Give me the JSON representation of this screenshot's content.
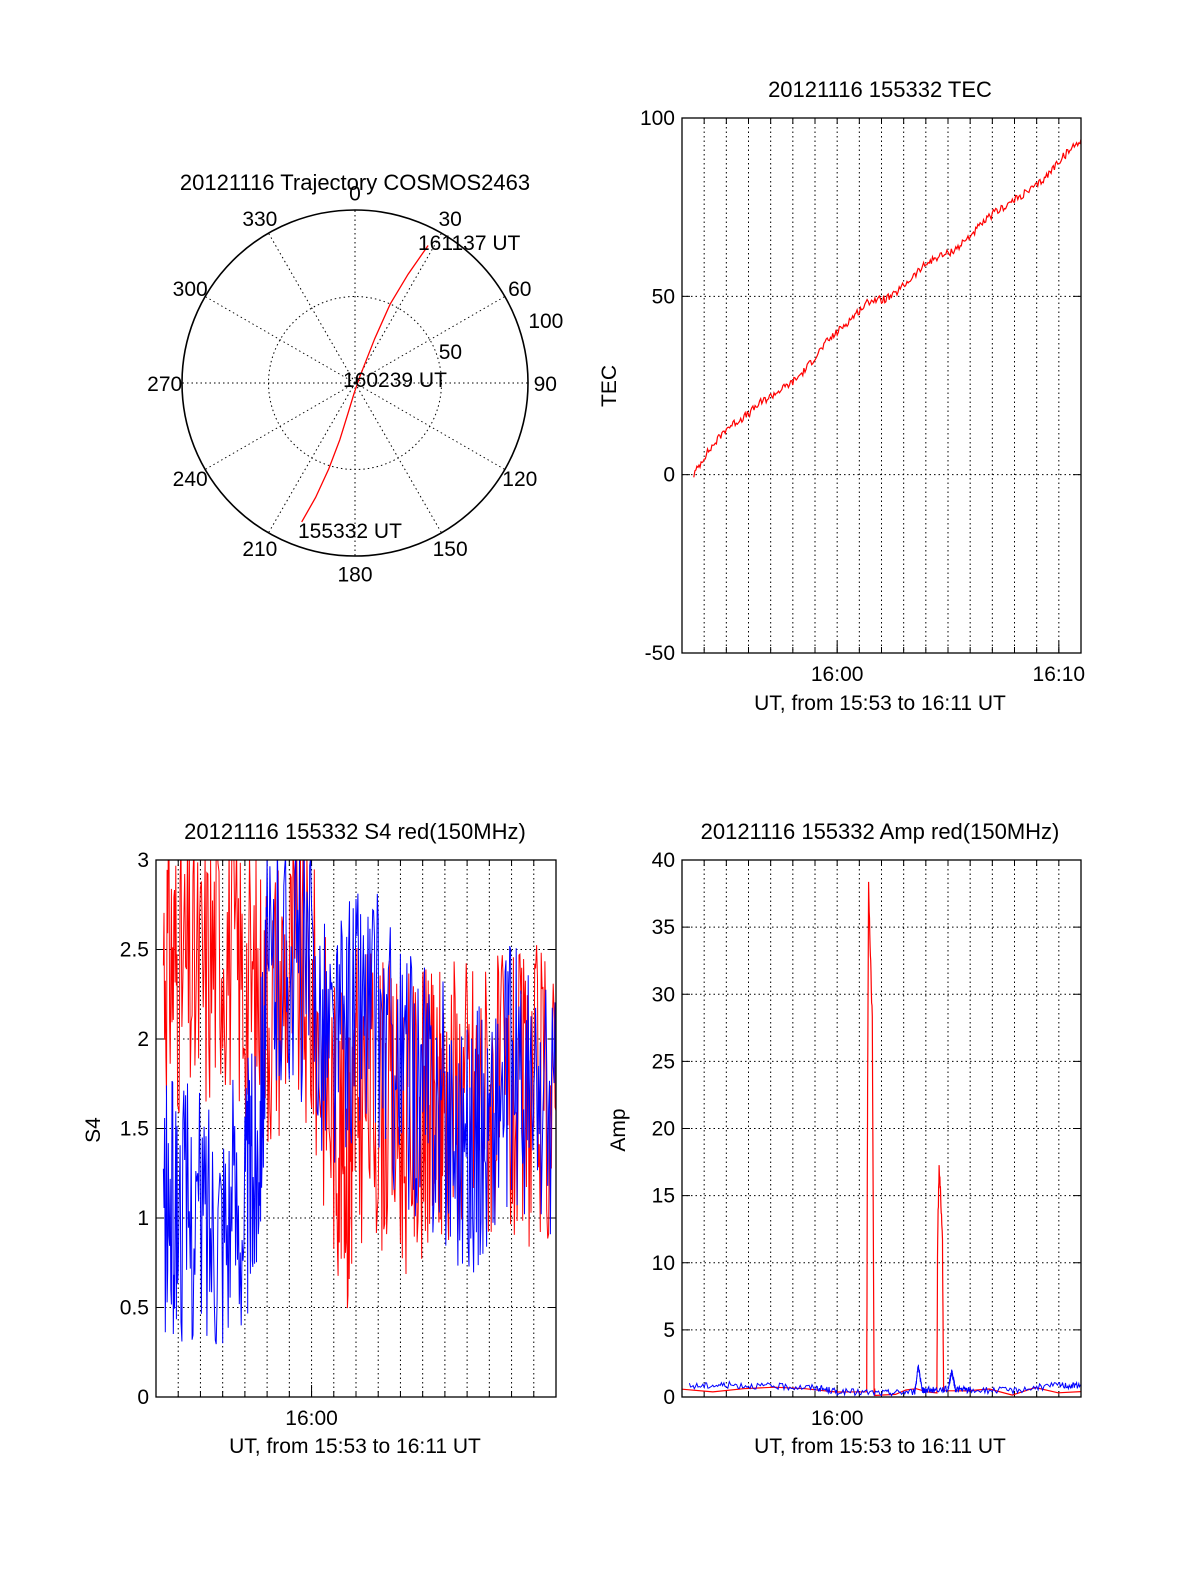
{
  "colors": {
    "red": "#ff0000",
    "blue": "#0000ff",
    "axis": "#000000"
  },
  "chart_data": [
    {
      "id": "trajectory",
      "type": "scatter",
      "title": "20121116 Trajectory COSMOS2463",
      "projection": "polar",
      "azimuth_labels": [
        "0",
        "30",
        "60",
        "90",
        "120",
        "150",
        "180",
        "210",
        "240",
        "270",
        "300",
        "330"
      ],
      "radius_labels": [
        "50",
        "100"
      ],
      "rlim": [
        0,
        100
      ],
      "grid": true,
      "annotations": {
        "start": "155332 UT",
        "mid": "160239 UT",
        "end": "161137 UT"
      },
      "series": [
        {
          "color": "red",
          "points": [
            {
              "az": 201,
              "r": 86
            },
            {
              "az": 199,
              "r": 70
            },
            {
              "az": 197,
              "r": 52
            },
            {
              "az": 195,
              "r": 34
            },
            {
              "az": 193,
              "r": 18
            },
            {
              "az": 185,
              "r": 6
            },
            {
              "az": 40,
              "r": 4
            },
            {
              "az": 24,
              "r": 28
            },
            {
              "az": 24,
              "r": 50
            },
            {
              "az": 26,
              "r": 70
            },
            {
              "az": 28,
              "r": 90
            }
          ]
        }
      ]
    },
    {
      "id": "tec",
      "type": "line",
      "title": "20121116 155332 TEC",
      "ylabel": "TEC",
      "xlabel": "UT, from 15:53 to 16:11 UT",
      "xlim": [
        "15:53:00",
        "16:11:00"
      ],
      "ylim": [
        -50,
        100
      ],
      "xticks": [
        "16:00",
        "16:10"
      ],
      "yticks": [
        "-50",
        "0",
        "50",
        "100"
      ],
      "grid": true,
      "series": [
        {
          "color": "red",
          "x": [
            "15:53:32",
            "15:54:00",
            "15:54:30",
            "15:55:00",
            "15:55:30",
            "15:56:00",
            "15:56:30",
            "15:57:00",
            "15:57:30",
            "15:58:00",
            "15:58:30",
            "15:59:00",
            "15:59:30",
            "16:00:00",
            "16:00:30",
            "16:01:00",
            "16:01:30",
            "16:02:00",
            "16:02:30",
            "16:03:00",
            "16:03:30",
            "16:04:00",
            "16:04:30",
            "16:05:00",
            "16:05:30",
            "16:06:00",
            "16:06:30",
            "16:07:00",
            "16:07:30",
            "16:08:00",
            "16:08:30",
            "16:09:00",
            "16:09:30",
            "16:10:00",
            "16:10:30",
            "16:11:00"
          ],
          "values": [
            0,
            5,
            9,
            13,
            15,
            17,
            20,
            22,
            24,
            26,
            29,
            33,
            37,
            40,
            43,
            46,
            49,
            49,
            50,
            53,
            56,
            59,
            61,
            62,
            64,
            67,
            70,
            73,
            75,
            77,
            79,
            81,
            84,
            88,
            91,
            94
          ]
        }
      ]
    },
    {
      "id": "s4",
      "type": "line",
      "title": "20121116 155332 S4 red(150MHz)",
      "ylabel": "S4",
      "xlabel": "UT, from 15:53 to 16:11 UT",
      "xlim": [
        "15:53:00",
        "16:11:00"
      ],
      "ylim": [
        0,
        3
      ],
      "xticks": [
        "16:00"
      ],
      "yticks": [
        "0",
        "0.5",
        "1",
        "1.5",
        "2",
        "2.5",
        "3"
      ],
      "grid": true,
      "series": [
        {
          "color": "red",
          "x": [
            "15:53:20",
            "15:54:00",
            "15:55:00",
            "15:56:00",
            "15:57:00",
            "15:58:00",
            "15:59:00",
            "16:00:00",
            "16:01:00",
            "16:01:40",
            "16:02:00",
            "16:03:00",
            "16:04:00",
            "16:05:00",
            "16:05:30",
            "16:06:00",
            "16:07:00",
            "16:08:00",
            "16:09:00",
            "16:10:00",
            "16:11:00"
          ],
          "values": [
            2.5,
            2.4,
            2.3,
            2.6,
            2.3,
            2.2,
            2.4,
            2.2,
            1.6,
            1.3,
            1.7,
            1.7,
            1.5,
            1.6,
            1.5,
            1.7,
            1.7,
            1.7,
            1.6,
            1.7,
            1.6
          ]
        },
        {
          "color": "blue",
          "x": [
            "15:53:20",
            "15:54:00",
            "15:55:00",
            "15:56:00",
            "15:57:00",
            "15:57:30",
            "15:58:00",
            "15:59:00",
            "16:00:00",
            "16:01:00",
            "16:02:00",
            "16:03:00",
            "16:04:00",
            "16:05:00",
            "16:06:00",
            "16:07:00",
            "16:08:00",
            "16:09:00",
            "16:10:00",
            "16:11:00"
          ],
          "values": [
            1.0,
            1.05,
            1.0,
            1.05,
            1.1,
            1.3,
            2.3,
            2.5,
            2.3,
            1.9,
            2.2,
            2.1,
            1.8,
            1.7,
            1.6,
            1.4,
            1.5,
            1.8,
            1.6,
            1.6
          ]
        }
      ]
    },
    {
      "id": "amp",
      "type": "line",
      "title": "20121116 155332 Amp red(150MHz)",
      "ylabel": "Amp",
      "xlabel": "UT, from 15:53 to 16:11 UT",
      "xlim": [
        "15:53:00",
        "16:11:00"
      ],
      "ylim": [
        0,
        40
      ],
      "xticks": [
        "16:00"
      ],
      "yticks": [
        "0",
        "5",
        "10",
        "15",
        "20",
        "25",
        "30",
        "35",
        "40"
      ],
      "grid": true,
      "series": [
        {
          "color": "red",
          "x": [
            "15:53:00",
            "16:01:20",
            "16:01:22",
            "16:01:25",
            "16:01:30",
            "16:01:35",
            "16:01:40",
            "16:01:42",
            "16:04:30",
            "16:04:32",
            "16:04:36",
            "16:04:40",
            "16:04:45",
            "16:04:48",
            "16:11:00"
          ],
          "values": [
            0.4,
            0.4,
            20,
            38,
            33,
            28,
            0.6,
            0.4,
            0.4,
            12,
            17,
            15,
            12,
            0.5,
            0.4
          ]
        },
        {
          "color": "blue",
          "x": [
            "15:53:20",
            "15:55:00",
            "15:57:00",
            "15:59:00",
            "16:00:00",
            "16:02:00",
            "16:03:30",
            "16:03:40",
            "16:03:50",
            "16:04:00",
            "16:05:00",
            "16:05:10",
            "16:05:20",
            "16:06:00",
            "16:08:00",
            "16:10:00",
            "16:11:00"
          ],
          "values": [
            0.8,
            0.9,
            0.8,
            0.7,
            0.4,
            0.3,
            0.4,
            2.3,
            0.5,
            0.5,
            0.6,
            1.9,
            0.6,
            0.5,
            0.5,
            0.9,
            0.8
          ]
        }
      ]
    }
  ]
}
